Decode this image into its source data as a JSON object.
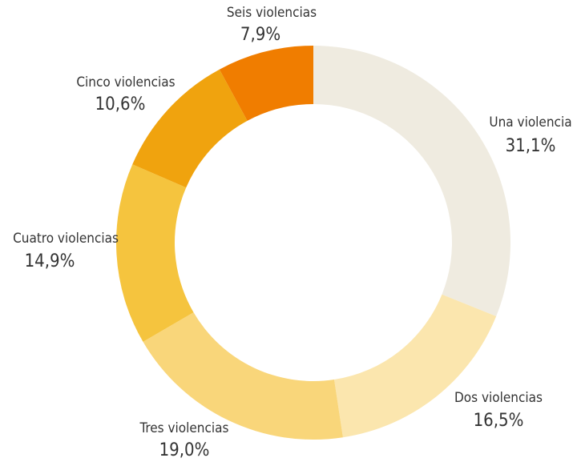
{
  "chart_data": {
    "type": "donut",
    "categories": [
      "Una violencia",
      "Dos violencias",
      "Tres violencias",
      "Cuatro violencias",
      "Cinco violencias",
      "Seis violencias"
    ],
    "values": [
      31.1,
      16.5,
      19.0,
      14.9,
      10.6,
      7.9
    ],
    "value_labels": [
      "31,1%",
      "16,5%",
      "19,0%",
      "14,9%",
      "10,6%",
      "7,9%"
    ],
    "colors": [
      "#efebe0",
      "#fbe6ae",
      "#f9d67a",
      "#f5c43e",
      "#f0a30e",
      "#f07d00"
    ]
  }
}
